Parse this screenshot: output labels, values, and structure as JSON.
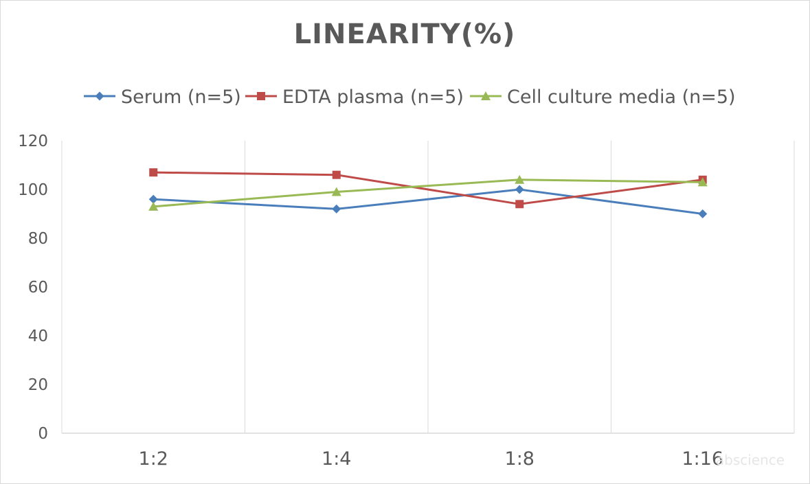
{
  "chart_data": {
    "type": "line",
    "title": "LINEARITY(%)",
    "categories": [
      "1:2",
      "1:4",
      "1:8",
      "1:16"
    ],
    "ylim": [
      0,
      120
    ],
    "yticks": [
      0,
      20,
      40,
      60,
      80,
      100,
      120
    ],
    "grid": "vertical",
    "legend_position": "top",
    "series": [
      {
        "name": "Serum (n=5)",
        "values": [
          96,
          92,
          100,
          90
        ],
        "color": "#4a7ebb",
        "marker": "diamond"
      },
      {
        "name": "EDTA plasma (n=5)",
        "values": [
          107,
          106,
          94,
          104
        ],
        "color": "#be4b48",
        "marker": "square"
      },
      {
        "name": "Cell culture media (n=5)",
        "values": [
          93,
          99,
          104,
          103
        ],
        "color": "#98b954",
        "marker": "triangle"
      }
    ]
  },
  "watermark": "abscience"
}
